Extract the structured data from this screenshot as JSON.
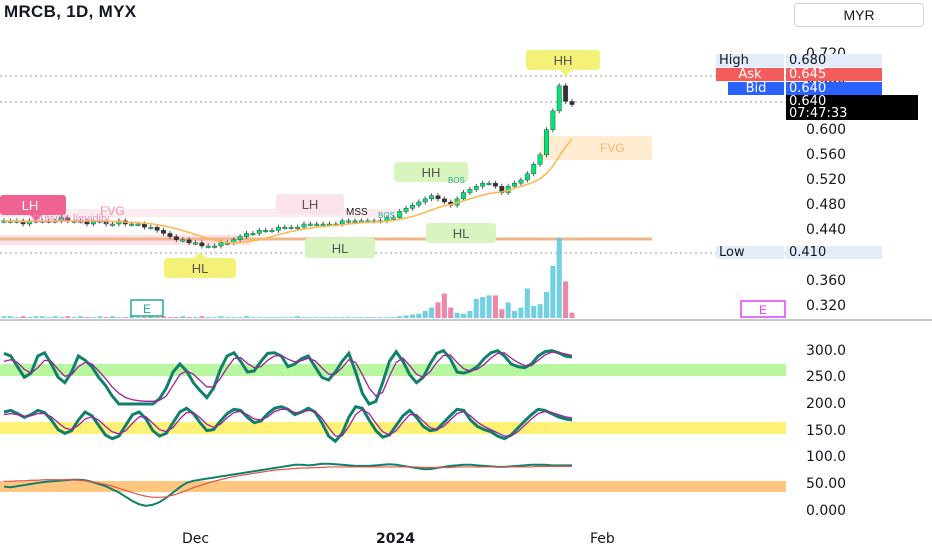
{
  "header": {
    "title": "MRCB, 1D, MYX",
    "currency": "MYR"
  },
  "price_labels": {
    "high": {
      "label": "High",
      "value": "0.680"
    },
    "ask": {
      "label": "Ask",
      "value": "0.645"
    },
    "bid": {
      "label": "Bid",
      "value": "0.640"
    },
    "last": {
      "value": "0.640",
      "countdown": "07:47:33"
    },
    "low": {
      "label": "Low",
      "value": "0.410"
    }
  },
  "annotations": {
    "hh_top": "HH",
    "hh_mid": "HH",
    "lh_left": "LH",
    "lh_mid": "LH",
    "hl_left": "HL",
    "hl_mid": "HL",
    "hl_right": "HL",
    "fvg_left": "FVG",
    "fvg_right": "FVG",
    "liquidity": "Outside liquidity",
    "mss": "MSS",
    "bos": "BOS",
    "bos2": "BOS",
    "earnings_left": "E",
    "earnings_right": "E"
  },
  "colors": {
    "up": "#22ab94",
    "down": "#f23645",
    "bull_candle": "#00e676",
    "green_band": "#b9f6a0",
    "yellow_band": "#fff176",
    "orange_band": "#ffc680",
    "ask": "#f45b5b",
    "bid": "#2962ff"
  },
  "chart_data": [
    {
      "type": "candlestick",
      "title": "MRCB, 1D, MYX",
      "y_ticks": [
        "0.720",
        "0.680",
        "0.640",
        "0.600",
        "0.560",
        "0.520",
        "0.480",
        "0.440",
        "0.400",
        "0.360",
        "0.320"
      ],
      "ylim": [
        0.31,
        0.73
      ],
      "x_ticks": [
        "Dec",
        "2024",
        "Feb"
      ],
      "close": [
        0.455,
        0.455,
        0.455,
        0.45,
        0.455,
        0.455,
        0.455,
        0.455,
        0.455,
        0.46,
        0.455,
        0.455,
        0.455,
        0.45,
        0.455,
        0.455,
        0.45,
        0.45,
        0.455,
        0.45,
        0.45,
        0.45,
        0.445,
        0.445,
        0.44,
        0.435,
        0.43,
        0.425,
        0.425,
        0.42,
        0.42,
        0.415,
        0.415,
        0.415,
        0.42,
        0.42,
        0.425,
        0.43,
        0.435,
        0.435,
        0.44,
        0.44,
        0.44,
        0.445,
        0.445,
        0.445,
        0.445,
        0.45,
        0.45,
        0.45,
        0.45,
        0.45,
        0.45,
        0.455,
        0.455,
        0.455,
        0.455,
        0.455,
        0.455,
        0.455,
        0.46,
        0.46,
        0.47,
        0.475,
        0.48,
        0.485,
        0.49,
        0.495,
        0.49,
        0.485,
        0.48,
        0.49,
        0.5,
        0.505,
        0.51,
        0.515,
        0.515,
        0.51,
        0.5,
        0.51,
        0.515,
        0.52,
        0.53,
        0.545,
        0.56,
        0.6,
        0.63,
        0.67,
        0.645,
        0.64
      ],
      "volume": [
        2,
        2,
        1,
        2,
        1,
        2,
        2,
        1,
        2,
        1,
        2,
        1,
        2,
        1,
        1,
        2,
        1,
        2,
        1,
        1,
        2,
        1,
        1,
        2,
        1,
        2,
        1,
        1,
        2,
        1,
        1,
        2,
        1,
        1,
        2,
        1,
        1,
        1,
        2,
        1,
        1,
        1,
        1,
        1,
        1,
        1,
        2,
        1,
        1,
        1,
        1,
        1,
        1,
        1,
        1,
        1,
        1,
        1,
        1,
        1,
        1,
        1,
        2,
        3,
        4,
        5,
        8,
        12,
        18,
        28,
        12,
        6,
        5,
        8,
        22,
        24,
        26,
        26,
        10,
        18,
        8,
        12,
        34,
        14,
        16,
        30,
        60,
        92,
        42,
        6
      ]
    },
    {
      "type": "line",
      "y_ticks": [
        "300.0",
        "250.0",
        "200.0",
        "150.0",
        "100.0",
        "50.00",
        "0.000"
      ],
      "ylim": [
        -10,
        320
      ],
      "series": [
        {
          "values": [
            295,
            290,
            270,
            250,
            258,
            290,
            296,
            275,
            250,
            240,
            260,
            290,
            282,
            270,
            250,
            235,
            215,
            200,
            200,
            200,
            200,
            200,
            200,
            210,
            230,
            260,
            275,
            262,
            240,
            225,
            212,
            230,
            265,
            290,
            296,
            280,
            260,
            262,
            280,
            295,
            296,
            290,
            270,
            275,
            285,
            290,
            270,
            250,
            245,
            260,
            280,
            295,
            260,
            220,
            200,
            205,
            240,
            280,
            298,
            280,
            255,
            240,
            250,
            275,
            295,
            300,
            285,
            260,
            258,
            262,
            270,
            285,
            296,
            300,
            290,
            275,
            270,
            268,
            275,
            290,
            298,
            300,
            296,
            290,
            288
          ]
        },
        {
          "values": [
            280,
            283,
            278,
            265,
            258,
            268,
            282,
            280,
            265,
            252,
            255,
            270,
            278,
            275,
            262,
            248,
            232,
            220,
            212,
            208,
            206,
            205,
            205,
            207,
            215,
            235,
            255,
            262,
            256,
            244,
            232,
            232,
            248,
            268,
            285,
            287,
            276,
            268,
            270,
            282,
            290,
            291,
            284,
            279,
            281,
            286,
            281,
            268,
            256,
            256,
            268,
            283,
            278,
            255,
            230,
            215,
            222,
            252,
            278,
            286,
            272,
            256,
            250,
            260,
            278,
            291,
            292,
            278,
            266,
            262,
            265,
            274,
            286,
            295,
            296,
            286,
            278,
            272,
            272,
            282,
            292,
            297,
            297,
            294,
            291
          ]
        },
        {
          "values": [
            185,
            188,
            182,
            175,
            180,
            188,
            184,
            170,
            152,
            145,
            150,
            170,
            185,
            178,
            160,
            142,
            135,
            140,
            160,
            180,
            185,
            172,
            150,
            140,
            145,
            165,
            185,
            192,
            182,
            165,
            150,
            152,
            168,
            182,
            190,
            188,
            175,
            165,
            168,
            182,
            192,
            195,
            190,
            180,
            185,
            192,
            185,
            165,
            140,
            130,
            145,
            175,
            195,
            192,
            170,
            150,
            138,
            142,
            160,
            178,
            188,
            175,
            158,
            150,
            152,
            165,
            178,
            190,
            188,
            170,
            158,
            152,
            148,
            140,
            135,
            142,
            155,
            168,
            180,
            190,
            188,
            182,
            176,
            172,
            170
          ]
        },
        {
          "values": [
            180,
            182,
            180,
            177,
            178,
            182,
            182,
            176,
            165,
            155,
            152,
            160,
            172,
            176,
            170,
            158,
            148,
            144,
            150,
            164,
            176,
            176,
            164,
            152,
            148,
            156,
            172,
            184,
            184,
            174,
            162,
            156,
            162,
            174,
            184,
            186,
            180,
            172,
            170,
            176,
            186,
            190,
            190,
            184,
            184,
            188,
            186,
            174,
            156,
            140,
            140,
            158,
            180,
            190,
            182,
            164,
            148,
            142,
            150,
            166,
            180,
            180,
            168,
            156,
            152,
            158,
            170,
            182,
            186,
            178,
            166,
            158,
            152,
            146,
            140,
            140,
            148,
            160,
            172,
            182,
            186,
            184,
            180,
            176,
            174
          ]
        },
        {
          "values": [
            45,
            44,
            46,
            48,
            50,
            52,
            54,
            55,
            56,
            57,
            58,
            58,
            57,
            54,
            50,
            46,
            40,
            34,
            26,
            18,
            12,
            9,
            11,
            16,
            24,
            34,
            44,
            52,
            56,
            58,
            60,
            62,
            64,
            66,
            68,
            70,
            72,
            74,
            76,
            78,
            80,
            82,
            84,
            86,
            86,
            85,
            86,
            88,
            88,
            87,
            86,
            85,
            84,
            84,
            84,
            85,
            86,
            87,
            86,
            84,
            82,
            80,
            78,
            78,
            80,
            82,
            84,
            85,
            86,
            86,
            85,
            84,
            83,
            82,
            82,
            83,
            84,
            85,
            86,
            86,
            86,
            85,
            85,
            85,
            85
          ]
        },
        {
          "values": [
            55,
            55,
            56,
            56,
            57,
            57,
            58,
            58,
            58,
            58,
            58,
            57,
            56,
            54,
            52,
            49,
            46,
            42,
            38,
            34,
            30,
            27,
            25,
            25,
            26,
            29,
            33,
            38,
            43,
            47,
            51,
            55,
            58,
            61,
            64,
            66,
            68,
            70,
            72,
            74,
            76,
            77,
            78,
            79,
            80,
            80,
            81,
            81,
            82,
            82,
            82,
            82,
            82,
            82,
            82,
            82,
            82,
            82,
            82,
            82,
            82,
            82,
            81,
            81,
            81,
            81,
            81,
            82,
            82,
            82,
            82,
            82,
            82,
            82,
            82,
            82,
            82,
            82,
            82,
            83,
            83,
            83,
            83,
            83,
            83
          ]
        }
      ]
    }
  ]
}
